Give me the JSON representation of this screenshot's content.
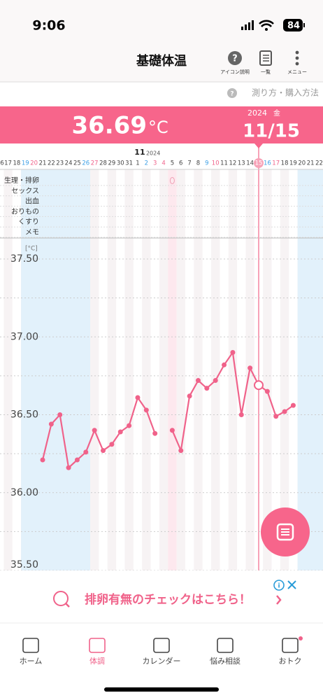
{
  "status_bar": {
    "time": "9:06",
    "battery": "84"
  },
  "header": {
    "title": "基礎体温",
    "icons": [
      "アイコン説明",
      "一覧",
      "メニュー"
    ]
  },
  "help_link": "測り方・購入方法",
  "summary": {
    "temperature": "36.69",
    "unit": "°C",
    "year": "2024",
    "weekday": "金",
    "date": "11/15"
  },
  "chart_data": {
    "type": "line",
    "month_label": "11",
    "year_label": "2024",
    "categories": [
      "6",
      "17",
      "18",
      "19",
      "20",
      "21",
      "22",
      "23",
      "24",
      "25",
      "26",
      "27",
      "28",
      "29",
      "30",
      "31",
      "1",
      "2",
      "3",
      "4",
      "5",
      "6",
      "7",
      "8",
      "9",
      "10",
      "11",
      "12",
      "13",
      "14",
      "15",
      "16",
      "17",
      "18",
      "19",
      "20",
      "21",
      "22"
    ],
    "category_colors": [
      "#444",
      "#444",
      "#444",
      "#3fa0e6",
      "#f0628a",
      "#444",
      "#444",
      "#444",
      "#444",
      "#444",
      "#3fa0e6",
      "#f0628a",
      "#444",
      "#444",
      "#444",
      "#444",
      "#444",
      "#3fa0e6",
      "#f0628a",
      "#f0628a",
      "#444",
      "#444",
      "#444",
      "#444",
      "#3fa0e6",
      "#f0628a",
      "#444",
      "#444",
      "#444",
      "#444",
      "#444",
      "#3fa0e6",
      "#f0628a",
      "#444",
      "#444",
      "#444",
      "#444",
      "#444"
    ],
    "row_labels": [
      "生理・排卵",
      "セックス",
      "出血",
      "おりもの",
      "くすり",
      "メモ"
    ],
    "y_unit": "[°C]",
    "color": "#f0628a",
    "values": [
      null,
      null,
      null,
      null,
      null,
      36.21,
      36.44,
      36.5,
      36.16,
      36.21,
      36.26,
      36.4,
      36.27,
      36.31,
      36.39,
      36.43,
      36.61,
      36.53,
      36.38,
      null,
      36.4,
      36.27,
      36.62,
      36.72,
      36.67,
      36.72,
      36.82,
      36.9,
      36.5,
      36.8,
      36.69,
      36.65,
      36.49,
      36.52,
      36.56,
      null,
      null,
      null
    ],
    "selected_index": 30,
    "ylim": [
      35.5,
      37.5
    ],
    "yticks": [
      {
        "value": 35.5,
        "label": "35.50"
      },
      {
        "value": 36,
        "label": "36.00"
      },
      {
        "value": 36.5,
        "label": "36.50"
      },
      {
        "value": 37,
        "label": "37.00"
      },
      {
        "value": 37.5,
        "label": "37.50"
      }
    ],
    "minor_yticks": [
      35.75,
      36.25,
      36.75,
      37.25
    ],
    "grid": true
  },
  "ad": {
    "text": "排卵有無のチェックはこちら！"
  },
  "tabs": [
    "ホーム",
    "体調",
    "カレンダー",
    "悩み相談",
    "おトク"
  ],
  "active_tab": 1
}
